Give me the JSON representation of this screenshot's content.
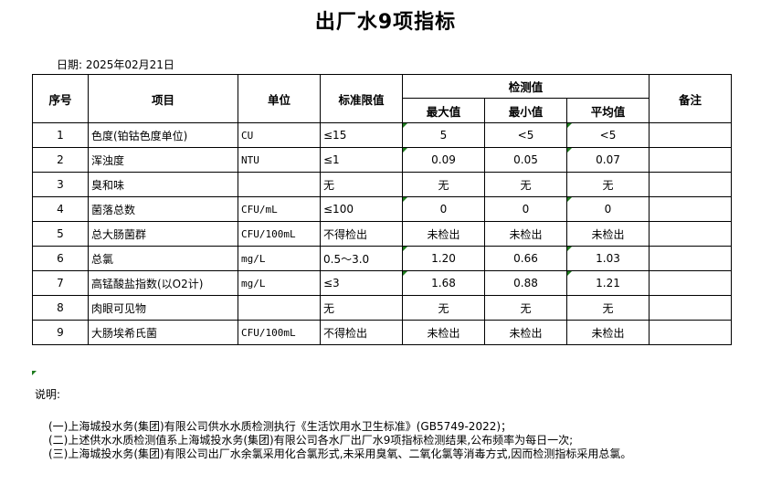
{
  "title": "出厂水9项指标",
  "date": "日期: 2025年02月21日",
  "headers": {
    "no": "序号",
    "item": "项目",
    "unit": "单位",
    "limit": "标准限值",
    "measured": "检测值",
    "max": "最大值",
    "min": "最小值",
    "avg": "平均值",
    "remark": "备注"
  },
  "rows": [
    {
      "no": "1",
      "item": "色度(铂钴色度单位)",
      "unit": "CU",
      "limit": "≤15",
      "max": "5",
      "min": "<5",
      "avg": "<5",
      "remark": ""
    },
    {
      "no": "2",
      "item": "浑浊度",
      "unit": "NTU",
      "limit": "≤1",
      "max": "0.09",
      "min": "0.05",
      "avg": "0.07",
      "remark": ""
    },
    {
      "no": "3",
      "item": "臭和味",
      "unit": "",
      "limit": "无",
      "max": "无",
      "min": "无",
      "avg": "无",
      "remark": ""
    },
    {
      "no": "4",
      "item": "菌落总数",
      "unit": "CFU/mL",
      "limit": "≤100",
      "max": "0",
      "min": "0",
      "avg": "0",
      "remark": ""
    },
    {
      "no": "5",
      "item": "总大肠菌群",
      "unit": "CFU/100mL",
      "limit": "不得检出",
      "max": "未检出",
      "min": "未检出",
      "avg": "未检出",
      "remark": ""
    },
    {
      "no": "6",
      "item": "总氯",
      "unit": "mg/L",
      "limit": "0.5～3.0",
      "max": "1.20",
      "min": "0.66",
      "avg": "1.03",
      "remark": ""
    },
    {
      "no": "7",
      "item": "高锰酸盐指数(以O2计)",
      "unit": "mg/L",
      "limit": "≤3",
      "max": "1.68",
      "min": "0.88",
      "avg": "1.21",
      "remark": ""
    },
    {
      "no": "8",
      "item": "肉眼可见物",
      "unit": "",
      "limit": "无",
      "max": "无",
      "min": "无",
      "avg": "无",
      "remark": ""
    },
    {
      "no": "9",
      "item": "大肠埃希氏菌",
      "unit": "CFU/100mL",
      "limit": "不得检出",
      "max": "未检出",
      "min": "未检出",
      "avg": "未检出",
      "remark": ""
    }
  ],
  "notes": {
    "heading": "说明:",
    "items": [
      "(一)上海城投水务(集团)有限公司供水水质检测执行《生活饮用水卫生标准》(GB5749-2022)；",
      "(二)上述供水水质检测值系上海城投水务(集团)有限公司各水厂出厂水9项指标检测结果,公布频率为每日一次;",
      "(三)上海城投水务(集团)有限公司出厂水余氯采用化合氯形式,未采用臭氧、二氧化氯等消毒方式,因而检测指标采用总氯。"
    ]
  },
  "marker_color": "#1e7b1e"
}
